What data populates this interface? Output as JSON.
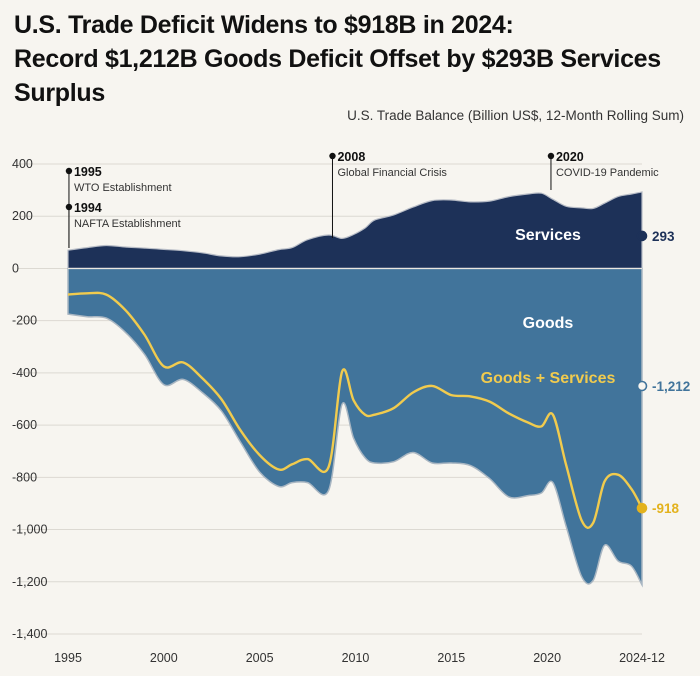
{
  "title_line1": "U.S. Trade Deficit Widens to $918B in 2024:",
  "title_line2": "Record $1,212B Goods Deficit Offset by $293B Services Surplus",
  "chart_data": {
    "type": "area",
    "subtitle": "U.S. Trade Balance (Billion US$, 12-Month Rolling Sum)",
    "ylim": [
      -1400,
      400
    ],
    "yticks": [
      400,
      200,
      0,
      -200,
      -400,
      -600,
      -800,
      -1000,
      -1200,
      -1400
    ],
    "ytick_labels": [
      "400",
      "200",
      "0",
      "-200",
      "-400",
      "-600",
      "-800",
      "-1,000",
      "-1,200",
      "-1,400"
    ],
    "xlim": [
      1995,
      2024.95
    ],
    "xticks": [
      1995,
      2000,
      2005,
      2010,
      2015,
      2020,
      2024.95
    ],
    "xtick_labels": [
      "1995",
      "2000",
      "2005",
      "2010",
      "2015",
      "2020",
      "2024-12"
    ],
    "x": [
      1995,
      1996,
      1997,
      1998,
      1999,
      2000,
      2001,
      2002,
      2003,
      2004,
      2005,
      2006,
      2006.7,
      2007.5,
      2008.6,
      2009.3,
      2009.9,
      2010.5,
      2011,
      2012,
      2013,
      2014,
      2015,
      2016,
      2017,
      2018,
      2019,
      2019.7,
      2020.3,
      2021,
      2021.8,
      2022.4,
      2023,
      2023.7,
      2024.4,
      2024.95
    ],
    "series": [
      {
        "name": "Services",
        "color": "#1d3158",
        "values": [
          70,
          80,
          88,
          82,
          78,
          73,
          68,
          60,
          48,
          45,
          55,
          72,
          80,
          110,
          128,
          115,
          130,
          155,
          185,
          205,
          235,
          260,
          262,
          255,
          258,
          275,
          285,
          288,
          265,
          238,
          232,
          230,
          250,
          275,
          285,
          293
        ]
      },
      {
        "name": "Goods",
        "color": "#41749b",
        "values": [
          -175,
          -185,
          -190,
          -245,
          -330,
          -445,
          -425,
          -475,
          -545,
          -665,
          -780,
          -835,
          -820,
          -820,
          -850,
          -520,
          -650,
          -725,
          -745,
          -740,
          -705,
          -745,
          -745,
          -755,
          -805,
          -875,
          -870,
          -860,
          -820,
          -990,
          -1180,
          -1195,
          -1060,
          -1120,
          -1140,
          -1212
        ]
      },
      {
        "name": "Goods + Services",
        "color": "#f1cb4e",
        "values": [
          -100,
          -95,
          -100,
          -160,
          -255,
          -375,
          -360,
          -420,
          -500,
          -620,
          -715,
          -770,
          -750,
          -730,
          -760,
          -395,
          -505,
          -560,
          -560,
          -535,
          -475,
          -450,
          -485,
          -490,
          -510,
          -555,
          -590,
          -605,
          -560,
          -755,
          -965,
          -975,
          -815,
          -790,
          -845,
          -918
        ]
      }
    ],
    "area_labels": {
      "services": "Services",
      "goods": "Goods",
      "goods_services": "Goods + Services"
    },
    "end_values": {
      "services": "293",
      "goods": "-1,212",
      "goods_services": "-918"
    },
    "annotations": [
      {
        "year": "1995",
        "text": "WTO Establishment",
        "x": 1995.05
      },
      {
        "year": "1994",
        "text": "NAFTA Establishment",
        "x": 1995.05
      },
      {
        "year": "2008",
        "text": "Global Financial Crisis",
        "x": 2008.8
      },
      {
        "year": "2020",
        "text": "COVID-19 Pandemic",
        "x": 2020.2
      }
    ]
  }
}
